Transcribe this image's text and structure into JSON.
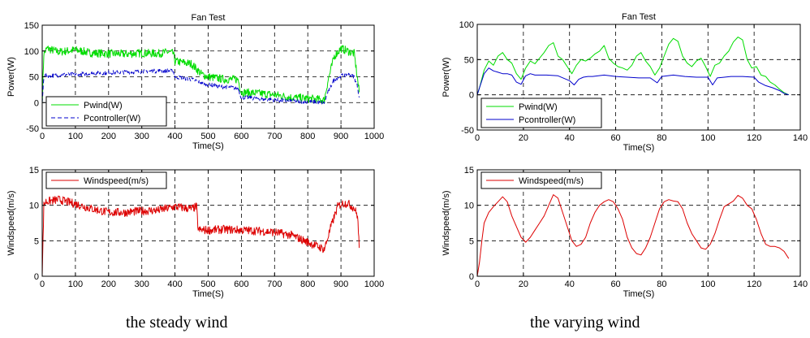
{
  "captions": {
    "left": "the steady wind",
    "right": "the varying wind"
  },
  "chart_data": [
    {
      "type": "line",
      "title": "Fan Test",
      "xlabel": "Time(S)",
      "ylabel": "Power(W)",
      "xlim": [
        0,
        1000
      ],
      "ylim": [
        -50,
        150
      ],
      "xticks": [
        0,
        100,
        200,
        300,
        400,
        500,
        600,
        700,
        800,
        900,
        1000
      ],
      "yticks": [
        -50,
        0,
        50,
        100,
        150
      ],
      "grid": true,
      "legend_position": "bottom-left",
      "series": [
        {
          "name": "Pwind(W)",
          "color": "#00dd00",
          "style": "solid",
          "noise": 8,
          "x": [
            0,
            5,
            15,
            50,
            100,
            150,
            200,
            250,
            300,
            350,
            380,
            395,
            400,
            450,
            480,
            500,
            550,
            590,
            600,
            650,
            700,
            750,
            800,
            850,
            860,
            880,
            900,
            920,
            940,
            950,
            955
          ],
          "y": [
            0,
            95,
            105,
            98,
            102,
            96,
            95,
            94,
            96,
            95,
            98,
            95,
            80,
            75,
            55,
            50,
            45,
            45,
            20,
            18,
            15,
            10,
            8,
            5,
            40,
            90,
            105,
            100,
            95,
            45,
            20
          ]
        },
        {
          "name": "Pcontroller(W)",
          "color": "#0000cc",
          "style": "dashed",
          "noise": 4,
          "x": [
            0,
            5,
            10,
            100,
            200,
            300,
            380,
            395,
            400,
            450,
            500,
            550,
            590,
            600,
            650,
            700,
            750,
            800,
            850,
            860,
            880,
            900,
            920,
            940,
            950,
            955
          ],
          "y": [
            0,
            50,
            52,
            55,
            58,
            60,
            62,
            60,
            50,
            45,
            35,
            30,
            28,
            10,
            8,
            5,
            3,
            2,
            0,
            20,
            45,
            52,
            55,
            50,
            30,
            10
          ]
        }
      ]
    },
    {
      "type": "line",
      "title": "",
      "xlabel": "Time(S)",
      "ylabel": "Windspeed(m/s)",
      "xlim": [
        0,
        1000
      ],
      "ylim": [
        0,
        15
      ],
      "xticks": [
        0,
        100,
        200,
        300,
        400,
        500,
        600,
        700,
        800,
        900,
        1000
      ],
      "yticks": [
        0,
        5,
        10,
        15
      ],
      "grid": true,
      "legend_position": "top-left",
      "series": [
        {
          "name": "Windspeed(m/s)",
          "color": "#dd0000",
          "style": "solid",
          "noise": 0.6,
          "x": [
            0,
            5,
            10,
            50,
            100,
            150,
            200,
            250,
            300,
            350,
            400,
            450,
            465,
            470,
            500,
            550,
            600,
            650,
            700,
            750,
            800,
            850,
            870,
            890,
            900,
            920,
            940,
            950,
            955
          ],
          "y": [
            0,
            10,
            10.5,
            10.8,
            10.2,
            9.5,
            9,
            9,
            9.2,
            9.3,
            9.8,
            9.5,
            9.8,
            6.5,
            6.5,
            6.6,
            6.5,
            6.4,
            6.2,
            5.8,
            4.8,
            3.8,
            7,
            9.8,
            10.2,
            10.3,
            9.6,
            8.5,
            4
          ]
        }
      ]
    },
    {
      "type": "line",
      "title": "Fan Test",
      "xlabel": "Time(S)",
      "ylabel": "Power(W)",
      "xlim": [
        0,
        140
      ],
      "ylim": [
        -50,
        100
      ],
      "xticks": [
        0,
        20,
        40,
        60,
        80,
        100,
        120,
        140
      ],
      "yticks": [
        -50,
        0,
        50,
        100
      ],
      "grid": true,
      "legend_position": "bottom-left",
      "series": [
        {
          "name": "Pwind(W)",
          "color": "#00dd00",
          "style": "solid",
          "noise": 0,
          "x": [
            0,
            1,
            3,
            5,
            7,
            9,
            11,
            13,
            15,
            17,
            19,
            21,
            23,
            25,
            27,
            29,
            31,
            33,
            35,
            37,
            39,
            41,
            43,
            45,
            47,
            49,
            51,
            53,
            55,
            57,
            59,
            61,
            63,
            65,
            67,
            69,
            71,
            73,
            75,
            77,
            79,
            81,
            83,
            85,
            87,
            89,
            91,
            93,
            95,
            97,
            99,
            101,
            103,
            105,
            107,
            109,
            111,
            113,
            115,
            117,
            119,
            121,
            123,
            125,
            127,
            129,
            131,
            133,
            135
          ],
          "y": [
            0,
            10,
            35,
            48,
            42,
            55,
            60,
            50,
            45,
            30,
            22,
            38,
            48,
            44,
            52,
            60,
            70,
            74,
            55,
            50,
            40,
            30,
            42,
            50,
            48,
            52,
            58,
            62,
            70,
            52,
            45,
            40,
            38,
            35,
            42,
            55,
            60,
            48,
            40,
            28,
            38,
            55,
            72,
            80,
            76,
            55,
            45,
            40,
            48,
            52,
            40,
            26,
            42,
            45,
            55,
            62,
            75,
            82,
            78,
            50,
            38,
            40,
            28,
            26,
            18,
            14,
            8,
            3,
            0
          ]
        },
        {
          "name": "Pcontroller(W)",
          "color": "#0000cc",
          "style": "solid",
          "noise": 0,
          "x": [
            0,
            1,
            3,
            5,
            7,
            9,
            11,
            13,
            15,
            17,
            19,
            21,
            23,
            25,
            30,
            35,
            40,
            42,
            44,
            46,
            48,
            50,
            55,
            60,
            65,
            70,
            75,
            78,
            80,
            85,
            90,
            95,
            100,
            102,
            104,
            110,
            115,
            120,
            122,
            125,
            128,
            131,
            133,
            135
          ],
          "y": [
            0,
            10,
            30,
            38,
            34,
            32,
            30,
            30,
            28,
            18,
            15,
            27,
            30,
            28,
            28,
            27,
            20,
            14,
            22,
            25,
            26,
            26,
            28,
            26,
            25,
            24,
            24,
            17,
            26,
            28,
            26,
            25,
            25,
            14,
            24,
            26,
            26,
            25,
            18,
            13,
            10,
            6,
            2,
            0
          ]
        }
      ]
    },
    {
      "type": "line",
      "title": "",
      "xlabel": "Time(S)",
      "ylabel": "Windspeed(m/s)",
      "xlim": [
        0,
        140
      ],
      "ylim": [
        0,
        15
      ],
      "xticks": [
        0,
        20,
        40,
        60,
        80,
        100,
        120,
        140
      ],
      "yticks": [
        0,
        5,
        10,
        15
      ],
      "grid": true,
      "legend_position": "top-left",
      "series": [
        {
          "name": "Windspeed(m/s)",
          "color": "#dd0000",
          "style": "solid",
          "noise": 0,
          "x": [
            0,
            1,
            2,
            3,
            5,
            7,
            9,
            11,
            13,
            15,
            17,
            19,
            21,
            23,
            25,
            27,
            29,
            31,
            33,
            35,
            37,
            39,
            41,
            43,
            45,
            47,
            49,
            51,
            53,
            55,
            57,
            59,
            61,
            63,
            65,
            67,
            69,
            71,
            73,
            75,
            77,
            79,
            81,
            83,
            85,
            87,
            89,
            91,
            93,
            95,
            97,
            99,
            101,
            103,
            105,
            107,
            109,
            111,
            113,
            115,
            117,
            119,
            121,
            123,
            125,
            127,
            129,
            131,
            133,
            135
          ],
          "y": [
            0,
            2,
            5,
            7.5,
            9,
            9.8,
            10.5,
            11.2,
            10.5,
            8.5,
            7,
            5.5,
            4.8,
            5.5,
            6.5,
            7.5,
            8.5,
            10,
            11.5,
            11,
            9,
            7,
            5,
            4.2,
            4.5,
            5.5,
            7.5,
            9,
            10,
            10.5,
            10.8,
            10.5,
            9.5,
            8,
            5.5,
            4,
            3.2,
            3,
            4,
            5.5,
            7.5,
            9.5,
            10.5,
            10.8,
            10.6,
            10.5,
            9.5,
            7.5,
            6,
            5,
            4,
            3.8,
            4.5,
            6,
            8,
            9.8,
            10.2,
            10.6,
            11.4,
            11,
            10,
            9.5,
            8,
            6,
            4.5,
            4.2,
            4.2,
            4,
            3.5,
            2.5
          ]
        }
      ]
    }
  ]
}
